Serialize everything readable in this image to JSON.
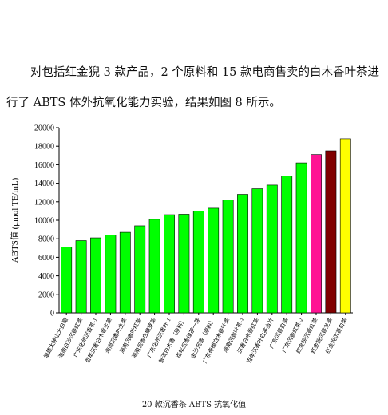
{
  "paragraph": "对包括红金猊 3 款产品，2 个原料和 15 款电商售卖的白木香叶茶进行了 ABTS 体外抗氧化能力实验，结果如图 8 所示。",
  "chart_data": {
    "type": "bar",
    "ylabel": "ABTS值 (μmol TE/mL)",
    "categories": [
      "福建太姥山大白毫",
      "海南白沙沉香红茶",
      "广东化州沉香茶-1",
      "百年沉香白木香生茶",
      "海南沉香叶生茶",
      "海南沉香叶红茶",
      "海南沉香白嫩芽茶",
      "广东化州沉香叶-1",
      "普洱白木香（原料）",
      "百年沉香绿茶一芽",
      "金沙沉香（原料）",
      "广东奇楠白木香叶茶",
      "海南沉香叶茶-2",
      "沉香白木香红茶",
      "百年沉香叶白茶当片",
      "广东沉香白茶",
      "广东沉香红茶-2",
      "红金猊沉香红茶",
      "红金猊沉香龙茶",
      "红金猊沉香白茶"
    ],
    "values": [
      7100,
      7800,
      8100,
      8400,
      8700,
      9400,
      10100,
      10600,
      10650,
      11000,
      11300,
      12200,
      12800,
      13400,
      13800,
      14800,
      16200,
      17100,
      17500,
      18800
    ],
    "colors": [
      "#00ff00",
      "#00ff00",
      "#00ff00",
      "#00ff00",
      "#00ff00",
      "#00ff00",
      "#00ff00",
      "#00ff00",
      "#00ff00",
      "#00ff00",
      "#00ff00",
      "#00ff00",
      "#00ff00",
      "#00ff00",
      "#00ff00",
      "#00ff00",
      "#00ff00",
      "#ff1493",
      "#800000",
      "#ffff00"
    ],
    "ylim": [
      0,
      20000
    ],
    "yticks": [
      0,
      2000,
      4000,
      6000,
      8000,
      10000,
      12000,
      14000,
      16000,
      18000,
      20000
    ]
  },
  "caption": "20 款沉香茶 ABTS 抗氧化值"
}
